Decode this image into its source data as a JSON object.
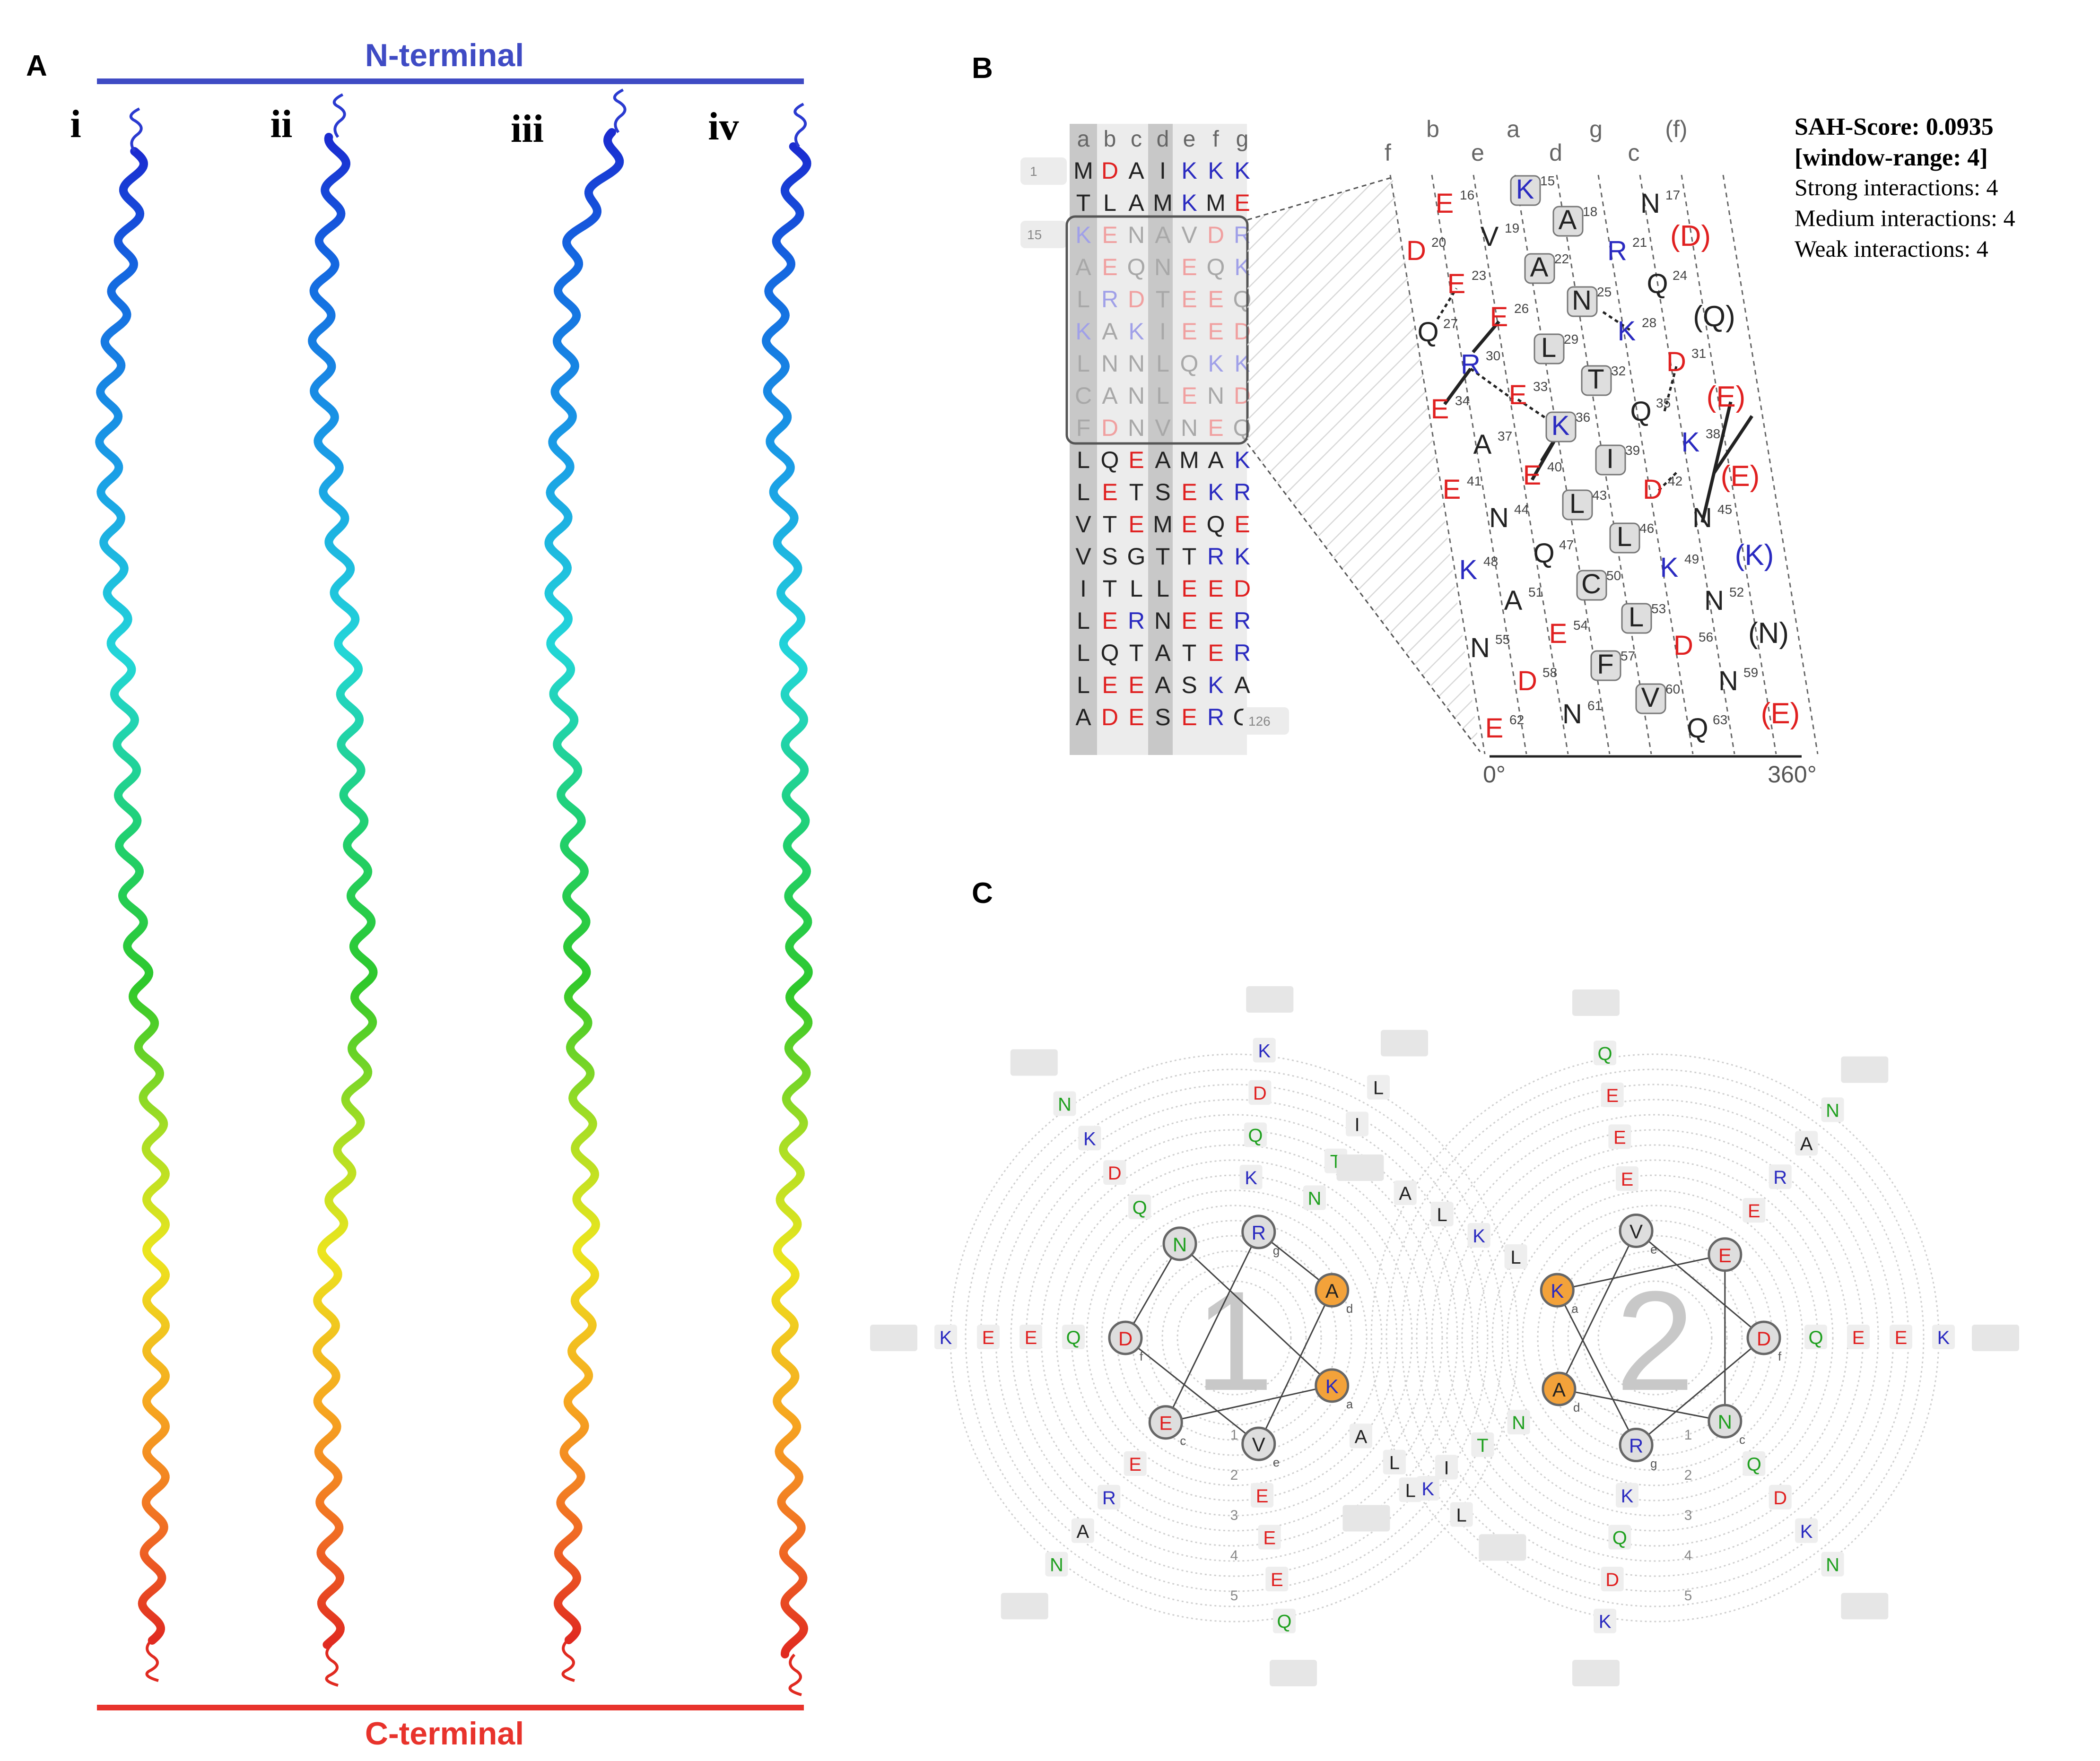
{
  "colors": {
    "n_term": "#3f4bc4",
    "c_term": "#e8332c",
    "acidic": "#e02020",
    "basic": "#2a2ac0",
    "polar": "#1fa01f",
    "hydrophobic": "#222222",
    "gray_text": "#777777"
  },
  "panel_a": {
    "label": "A",
    "n_terminal": "N-terminal",
    "c_terminal": "C-terminal",
    "models": [
      "i",
      "ii",
      "iii",
      "iv"
    ]
  },
  "panel_b": {
    "label": "B",
    "heptad_header": [
      "a",
      "b",
      "c",
      "d",
      "e",
      "f",
      "g"
    ],
    "rows": [
      "MDAIKKK",
      "TLAMKME",
      "KENAVDR",
      "AEQNEQK",
      "LRDTEEQ",
      "KAKIEED",
      "LNNLQKK",
      "CANLEND",
      "FDNVNEQ",
      "LQEAMAK",
      "LETSEKR",
      "VTEMEQE",
      "VSGTTRK",
      "ITLLEED",
      "LERNEER",
      "LQTATER",
      "LEEASKA",
      "ADESERG"
    ],
    "row_numbers": {
      "first": "1",
      "window": "15",
      "last": "126"
    },
    "net_columns": [
      "f",
      "b",
      "e",
      "a",
      "d",
      "g",
      "c",
      "(f)"
    ],
    "axis_start": "0°",
    "axis_end": "360°",
    "net_residues": [
      {
        "aa": "K",
        "n": "15",
        "core": true
      },
      {
        "aa": "E",
        "n": "16"
      },
      {
        "aa": "N",
        "n": "17"
      },
      {
        "aa": "A",
        "n": "18",
        "core": true
      },
      {
        "aa": "V",
        "n": "19"
      },
      {
        "aa": "D",
        "n": "20"
      },
      {
        "aa": "R",
        "n": "21"
      },
      {
        "aa": "(D)",
        "n": ""
      },
      {
        "aa": "A",
        "n": "22",
        "core": true
      },
      {
        "aa": "E",
        "n": "23"
      },
      {
        "aa": "Q",
        "n": "24"
      },
      {
        "aa": "N",
        "n": "25",
        "core": true
      },
      {
        "aa": "E",
        "n": "26"
      },
      {
        "aa": "Q",
        "n": "27"
      },
      {
        "aa": "K",
        "n": "28"
      },
      {
        "aa": "(Q)",
        "n": ""
      },
      {
        "aa": "L",
        "n": "29",
        "core": true
      },
      {
        "aa": "R",
        "n": "30"
      },
      {
        "aa": "D",
        "n": "31"
      },
      {
        "aa": "T",
        "n": "32",
        "core": true
      },
      {
        "aa": "E",
        "n": "33"
      },
      {
        "aa": "E",
        "n": "34"
      },
      {
        "aa": "Q",
        "n": "35"
      },
      {
        "aa": "(E)",
        "n": ""
      },
      {
        "aa": "K",
        "n": "36",
        "core": true
      },
      {
        "aa": "A",
        "n": "37"
      },
      {
        "aa": "K",
        "n": "38"
      },
      {
        "aa": "I",
        "n": "39",
        "core": true
      },
      {
        "aa": "E",
        "n": "40"
      },
      {
        "aa": "E",
        "n": "41"
      },
      {
        "aa": "D",
        "n": "42"
      },
      {
        "aa": "(E)",
        "n": ""
      },
      {
        "aa": "L",
        "n": "43",
        "core": true
      },
      {
        "aa": "N",
        "n": "44"
      },
      {
        "aa": "N",
        "n": "45"
      },
      {
        "aa": "L",
        "n": "46",
        "core": true
      },
      {
        "aa": "Q",
        "n": "47"
      },
      {
        "aa": "K",
        "n": "48"
      },
      {
        "aa": "K",
        "n": "49"
      },
      {
        "aa": "(K)",
        "n": ""
      },
      {
        "aa": "C",
        "n": "50",
        "core": true
      },
      {
        "aa": "A",
        "n": "51"
      },
      {
        "aa": "N",
        "n": "52"
      },
      {
        "aa": "L",
        "n": "53",
        "core": true
      },
      {
        "aa": "E",
        "n": "54"
      },
      {
        "aa": "N",
        "n": "55"
      },
      {
        "aa": "D",
        "n": "56"
      },
      {
        "aa": "(N)",
        "n": ""
      },
      {
        "aa": "F",
        "n": "57",
        "core": true
      },
      {
        "aa": "D",
        "n": "58"
      },
      {
        "aa": "N",
        "n": "59"
      },
      {
        "aa": "V",
        "n": "60",
        "core": true
      },
      {
        "aa": "N",
        "n": "61"
      },
      {
        "aa": "E",
        "n": "62"
      },
      {
        "aa": "Q",
        "n": "63"
      },
      {
        "aa": "(E)",
        "n": ""
      }
    ],
    "stats": [
      "SAH-Score: 0.0935",
      "[window-range: 4]",
      "Strong interactions: 4",
      "Medium interactions: 4",
      "Weak interactions: 4"
    ]
  },
  "panel_c": {
    "label": "C",
    "wheel1": {
      "number": "1",
      "core": [
        {
          "aa": "N",
          "pos": "",
          "style": "gray"
        },
        {
          "aa": "A",
          "pos": "d",
          "style": "orange"
        },
        {
          "aa": "K",
          "pos": "a",
          "style": "orange"
        },
        {
          "aa": "V",
          "pos": "e",
          "style": "gray"
        },
        {
          "aa": "E",
          "pos": "c",
          "style": "gray"
        },
        {
          "aa": "D",
          "pos": "f",
          "style": "gray"
        },
        {
          "aa": "R",
          "pos": "g",
          "style": "gray"
        }
      ],
      "arm_top": [
        "K",
        "Q",
        "D",
        "K"
      ],
      "arm_upper_right": [
        "N",
        "T",
        "I",
        "L"
      ],
      "arm_lower_right": [
        "A",
        "L",
        "K",
        "L"
      ],
      "arm_bottom": [
        "E",
        "E",
        "E",
        "Q"
      ],
      "arm_lower_left": [
        "E",
        "R",
        "A",
        "N"
      ],
      "arm_left": [
        "Q",
        "E",
        "E",
        "K"
      ],
      "arm_upper_left": [
        "Q",
        "D",
        "K",
        "N"
      ]
    },
    "wheel2": {
      "number": "2",
      "core": [
        {
          "aa": "V",
          "pos": "e",
          "style": "gray"
        },
        {
          "aa": "E",
          "pos": "",
          "style": "gray"
        },
        {
          "aa": "D",
          "pos": "f",
          "style": "gray"
        },
        {
          "aa": "N",
          "pos": "c",
          "style": "gray"
        },
        {
          "aa": "R",
          "pos": "g",
          "style": "gray"
        },
        {
          "aa": "A",
          "pos": "d",
          "style": "orange"
        },
        {
          "aa": "K",
          "pos": "a",
          "style": "orange"
        }
      ],
      "arm_top": [
        "E",
        "E",
        "E",
        "Q"
      ],
      "arm_upper_right": [
        "E",
        "R",
        "A",
        "N"
      ],
      "arm_right": [
        "Q",
        "E",
        "E",
        "K"
      ],
      "arm_lower_right": [
        "Q",
        "D",
        "K",
        "N"
      ],
      "arm_bottom": [
        "K",
        "Q",
        "D",
        "K"
      ],
      "arm_lower_left": [
        "N",
        "T",
        "I",
        "L"
      ],
      "arm_upper_left": [
        "L",
        "K",
        "L",
        "A"
      ]
    },
    "ring_numbers": [
      "1",
      "2",
      "3",
      "4",
      "5"
    ]
  }
}
